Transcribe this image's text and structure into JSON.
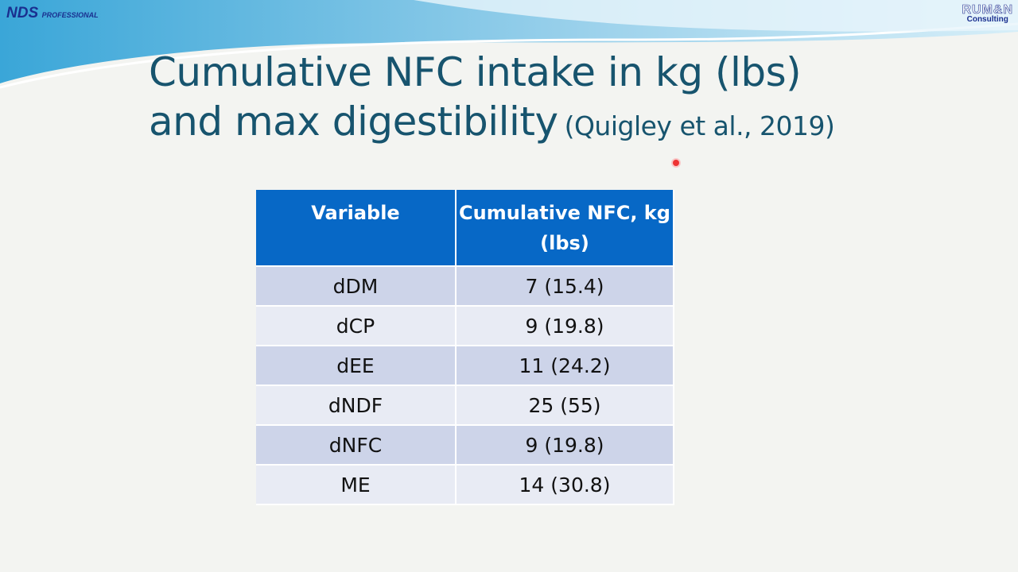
{
  "logos": {
    "left": {
      "name": "NDS",
      "tagline": "PROFESSIONAL"
    },
    "right": {
      "name": "RUM&N",
      "tagline": "Consulting"
    }
  },
  "slide": {
    "title_line1": "Cumulative NFC intake in kg (lbs)",
    "title_line2": "and max digestibility",
    "citation": "(Quigley et al., 2019)"
  },
  "table": {
    "header": [
      "Variable",
      "Cumulative NFC, kg (lbs)"
    ],
    "rows": [
      [
        "dDM",
        "7 (15.4)"
      ],
      [
        "dCP",
        "9 (19.8)"
      ],
      [
        "dEE",
        "11 (24.2)"
      ],
      [
        "dNDF",
        "25 (55)"
      ],
      [
        "dNFC",
        "9 (19.8)"
      ],
      [
        "ME",
        "14 (30.8)"
      ]
    ]
  }
}
